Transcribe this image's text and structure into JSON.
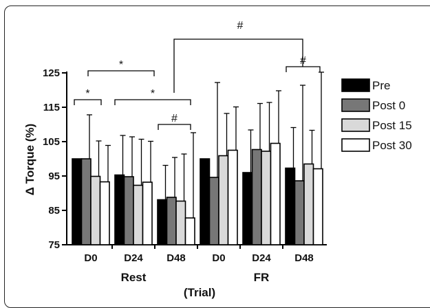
{
  "chart_data": {
    "type": "bar",
    "ylabel": "Δ Torque (%)",
    "xlabel": "(Trial)",
    "ylim": [
      75,
      125
    ],
    "yticks": [
      75,
      85,
      95,
      105,
      115,
      125
    ],
    "groups": [
      "Rest",
      "FR"
    ],
    "categories": [
      "D0",
      "D24",
      "D48",
      "D0",
      "D24",
      "D48"
    ],
    "series": [
      {
        "name": "Pre",
        "color": "#000000",
        "values": [
          100,
          95.3,
          88.1,
          100,
          96,
          97.3
        ],
        "error": [
          0,
          11.5,
          10,
          0,
          12.4,
          11.8
        ]
      },
      {
        "name": "Post 0",
        "color": "#777777",
        "values": [
          100,
          94.8,
          88.8,
          94.6,
          102.7,
          93.6
        ],
        "error": [
          12.8,
          11.6,
          11.6,
          27.6,
          13.4,
          27.8
        ]
      },
      {
        "name": "Post 15",
        "color": "#d9d9d9",
        "values": [
          94.9,
          92.3,
          87.7,
          100.9,
          102.2,
          98.5
        ],
        "error": [
          10.3,
          13.4,
          13.7,
          12.3,
          14.2,
          9.8
        ]
      },
      {
        "name": "Post 30",
        "color": "#ffffff",
        "values": [
          93.3,
          93.2,
          82.8,
          102.5,
          104.5,
          97.1
        ],
        "error": [
          10.6,
          11.9,
          24.8,
          12.6,
          15.3,
          28.1
        ]
      }
    ],
    "annotations": [
      "*",
      "*",
      "*",
      "#",
      "#",
      "#"
    ]
  }
}
